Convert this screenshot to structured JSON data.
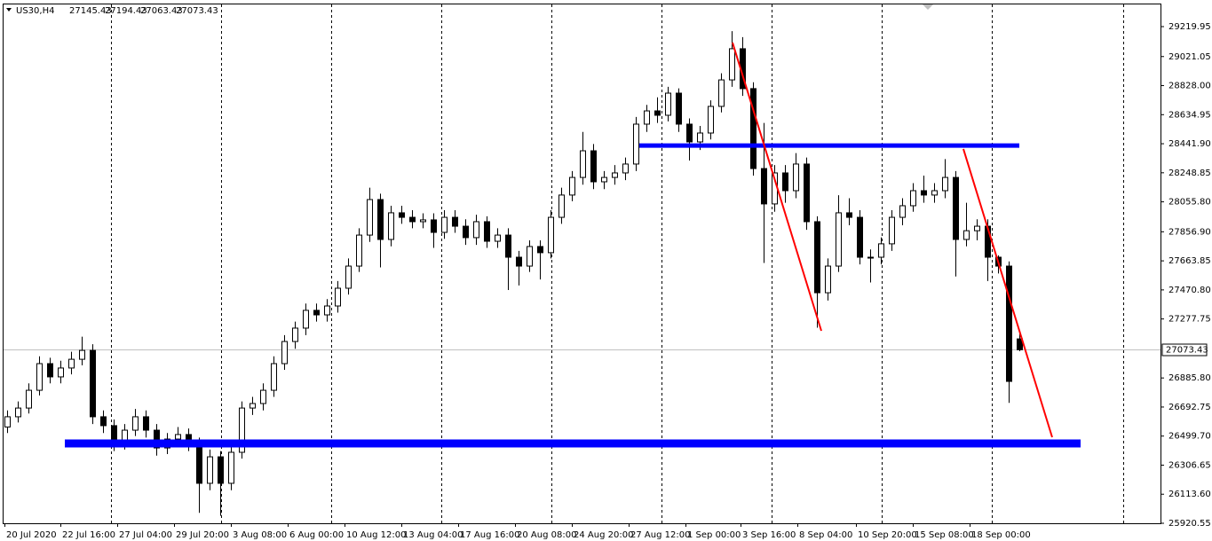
{
  "chart_data": {
    "type": "candlestick",
    "symbol": "US30,H4",
    "x_labels": [
      "20 Jul 2020",
      "22 Jul 16:00",
      "27 Jul 04:00",
      "29 Jul 20:00",
      "3 Aug 08:00",
      "6 Aug 00:00",
      "10 Aug 12:00",
      "13 Aug 04:00",
      "17 Aug 16:00",
      "20 Aug 08:00",
      "24 Aug 20:00",
      "27 Aug 12:00",
      "1 Sep 00:00",
      "3 Sep 16:00",
      "8 Sep 04:00",
      "10 Sep 20:00",
      "15 Sep 08:00",
      "18 Sep 00:00"
    ],
    "open": [
      26560,
      26628,
      26686,
      26804,
      26981,
      26893,
      26952,
      27010,
      27069,
      26628,
      26569,
      26451,
      26539,
      26628,
      26539,
      26421,
      26480,
      26510,
      26451,
      26186,
      26362,
      26186,
      26392,
      26686,
      26716,
      26804,
      26981,
      27128,
      27217,
      27335,
      27305,
      27364,
      27482,
      27629,
      27835,
      28071,
      27806,
      27983,
      27953,
      27924,
      27936,
      27853,
      27953,
      27894,
      27818,
      27924,
      27794,
      27835,
      27688,
      27629,
      27759,
      27718,
      27953,
      28101,
      28218,
      28395,
      28189,
      28218,
      28248,
      28307,
      28572,
      28660,
      28631,
      28778,
      28572,
      28454,
      28513,
      28690,
      28866,
      29073,
      28808,
      28277,
      28042,
      28248,
      28130,
      28307,
      27924,
      27452,
      27629,
      27983,
      27953,
      27688,
      27688,
      27777,
      27953,
      28030,
      28130,
      28101,
      28130,
      28218,
      27806,
      27864,
      27894,
      27688,
      27629,
      27145.43
    ],
    "high": [
      26670,
      26730,
      26850,
      27030,
      27020,
      27000,
      27060,
      27160,
      27110,
      26670,
      26610,
      26580,
      26680,
      26670,
      26580,
      26520,
      26560,
      26550,
      26490,
      26410,
      26400,
      26440,
      26730,
      26760,
      26850,
      27030,
      27170,
      27260,
      27380,
      27380,
      27410,
      27530,
      27680,
      27880,
      28150,
      28110,
      28030,
      28030,
      28000,
      27980,
      27980,
      28000,
      28000,
      27940,
      27970,
      27960,
      27880,
      27880,
      27730,
      27800,
      27800,
      28000,
      28150,
      28260,
      28520,
      28440,
      28260,
      28300,
      28350,
      28620,
      28700,
      28750,
      28820,
      28810,
      28610,
      28560,
      28730,
      28910,
      29190,
      29150,
      28850,
      28580,
      28300,
      28300,
      28380,
      28350,
      27960,
      27680,
      28100,
      28080,
      28000,
      27740,
      27820,
      28000,
      28080,
      28180,
      28230,
      28180,
      28340,
      28260,
      28050,
      27940,
      27940,
      27700,
      27660,
      27194.43
    ],
    "low": [
      26520,
      26590,
      26650,
      26770,
      26850,
      26850,
      26910,
      26970,
      26580,
      26520,
      26400,
      26410,
      26500,
      26490,
      26370,
      26380,
      26430,
      26400,
      25990,
      26140,
      25970,
      26140,
      26350,
      26640,
      26670,
      26760,
      26940,
      27080,
      27170,
      27260,
      27260,
      27320,
      27440,
      27590,
      27790,
      27620,
      27760,
      27910,
      27880,
      27880,
      27750,
      27810,
      27850,
      27770,
      27770,
      27750,
      27750,
      27470,
      27500,
      27590,
      27540,
      27680,
      27910,
      28060,
      28170,
      28140,
      28140,
      28170,
      28200,
      28260,
      28520,
      28580,
      28590,
      28520,
      28330,
      28400,
      28470,
      28650,
      28820,
      28760,
      28230,
      27650,
      27990,
      28050,
      28080,
      27870,
      27220,
      27400,
      27590,
      27900,
      27640,
      27520,
      27640,
      27730,
      27900,
      27990,
      28050,
      28050,
      28080,
      27560,
      27760,
      27800,
      27530,
      27580,
      26720,
      27063.43
    ],
    "close": [
      26628,
      26686,
      26804,
      26981,
      26893,
      26952,
      27010,
      27069,
      26628,
      26569,
      26451,
      26539,
      26628,
      26539,
      26421,
      26480,
      26510,
      26451,
      26186,
      26362,
      26186,
      26392,
      26686,
      26716,
      26804,
      26981,
      27128,
      27217,
      27335,
      27305,
      27364,
      27482,
      27629,
      27835,
      28071,
      27806,
      27983,
      27953,
      27924,
      27936,
      27853,
      27953,
      27894,
      27818,
      27924,
      27794,
      27835,
      27688,
      27629,
      27759,
      27718,
      27953,
      28101,
      28218,
      28395,
      28189,
      28218,
      28248,
      28307,
      28572,
      28660,
      28631,
      28778,
      28572,
      28454,
      28513,
      28690,
      28866,
      29073,
      28808,
      28277,
      28042,
      28248,
      28130,
      28307,
      27924,
      27452,
      27629,
      27983,
      27953,
      27688,
      27688,
      27777,
      27953,
      28030,
      28130,
      28101,
      28130,
      28218,
      27806,
      27864,
      27894,
      27688,
      27629,
      26863,
      27073.43
    ],
    "ylim": [
      25920.55,
      29367.25
    ],
    "yticks": [
      {
        "value": 29219.95,
        "label": "29219.95"
      },
      {
        "value": 29021.05,
        "label": "29021.05"
      },
      {
        "value": 28828.0,
        "label": "28828.00"
      },
      {
        "value": 28634.95,
        "label": "28634.95"
      },
      {
        "value": 28441.9,
        "label": "28441.90"
      },
      {
        "value": 28248.85,
        "label": "28248.85"
      },
      {
        "value": 28055.8,
        "label": "28055.80"
      },
      {
        "value": 27856.9,
        "label": "27856.90"
      },
      {
        "value": 27663.85,
        "label": "27663.85"
      },
      {
        "value": 27470.8,
        "label": "27470.80"
      },
      {
        "value": 27277.75,
        "label": "27277.75"
      },
      {
        "value": 26885.8,
        "label": "26885.80"
      },
      {
        "value": 26692.75,
        "label": "26692.75"
      },
      {
        "value": 26499.7,
        "label": "26499.70"
      },
      {
        "value": 26306.65,
        "label": "26306.65"
      },
      {
        "value": 26113.6,
        "label": "26113.60"
      },
      {
        "value": 25920.55,
        "label": "25920.55"
      }
    ],
    "hlines": [
      {
        "value": 28430,
        "color": "#0000ff"
      },
      {
        "value": 26451,
        "color": "#0000ff"
      }
    ],
    "trendlines": [
      {
        "start": 29114,
        "end": 27199,
        "color": "#ff0000"
      },
      {
        "start": 28407,
        "end": 26492,
        "color": "#ff0000"
      }
    ],
    "bull_color": "#ffffff",
    "bear_color": "#000000"
  }
}
